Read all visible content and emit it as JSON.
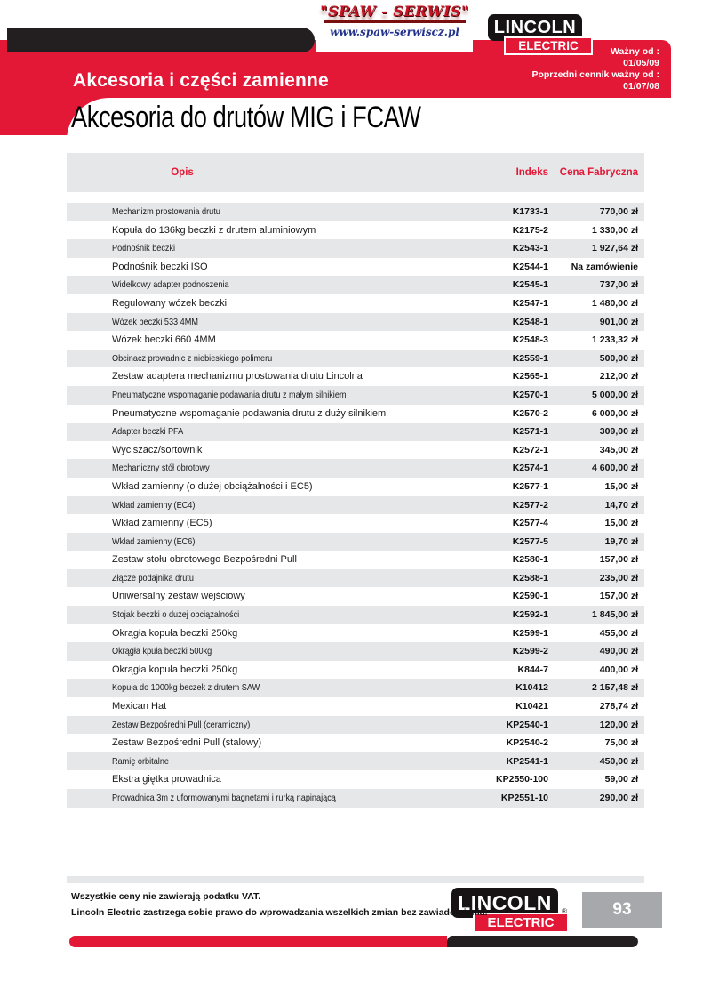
{
  "branding": {
    "dealer": {
      "name": "\"SPAW - SERWIS\"",
      "website": "www.spaw-serwiscz.pl"
    },
    "lincoln": {
      "line1": "LINCOLN",
      "line2": "ELECTRIC",
      "registered_mark": "®"
    }
  },
  "header": {
    "section_title": "Akcesoria i części zamienne",
    "valid_from_label": "Ważny od :",
    "valid_from_date": "01/05/09",
    "previous_price_list_label": "Poprzedni cennik ważny od :",
    "previous_price_list_date": "01/07/08"
  },
  "page_title": "Akcesoria do drutów MIG i FCAW",
  "table": {
    "columns": {
      "description": "Opis",
      "index": "Indeks",
      "price": "Cena Fabryczna"
    },
    "rows": [
      {
        "description": "Mechanizm prostowania drutu",
        "index": "K1733-1",
        "price": "770,00 zł"
      },
      {
        "description": "Kopuła do 136kg beczki z drutem aluminiowym",
        "index": "K2175-2",
        "price": "1 330,00 zł"
      },
      {
        "description": "Podnośnik beczki",
        "index": "K2543-1",
        "price": "1 927,64 zł"
      },
      {
        "description": "Podnośnik beczki ISO",
        "index": "K2544-1",
        "price": "Na zamówienie"
      },
      {
        "description": "Widełkowy adapter podnoszenia",
        "index": "K2545-1",
        "price": "737,00 zł"
      },
      {
        "description": "Regulowany wózek beczki",
        "index": "K2547-1",
        "price": "1 480,00 zł"
      },
      {
        "description": "Wózek beczki 533 4MM",
        "index": "K2548-1",
        "price": "901,00 zł"
      },
      {
        "description": "Wózek beczki 660 4MM",
        "index": "K2548-3",
        "price": "1 233,32 zł"
      },
      {
        "description": "Obcinacz prowadnic z niebieskiego polimeru",
        "index": "K2559-1",
        "price": "500,00 zł"
      },
      {
        "description": "Zestaw adaptera mechanizmu prostowania drutu Lincolna",
        "index": "K2565-1",
        "price": "212,00 zł"
      },
      {
        "description": "Pneumatyczne wspomaganie podawania drutu z małym silnikiem",
        "index": "K2570-1",
        "price": "5 000,00 zł"
      },
      {
        "description": "Pneumatyczne wspomaganie podawania drutu z duży silnikiem",
        "index": "K2570-2",
        "price": "6 000,00 zł"
      },
      {
        "description": "Adapter beczki PFA",
        "index": "K2571-1",
        "price": "309,00 zł"
      },
      {
        "description": "Wyciszacz/sortownik",
        "index": "K2572-1",
        "price": "345,00 zł"
      },
      {
        "description": "Mechaniczny stół obrotowy",
        "index": "K2574-1",
        "price": "4 600,00 zł"
      },
      {
        "description": "Wkład zamienny (o dużej obciążalności i EC5)",
        "index": "K2577-1",
        "price": "15,00 zł"
      },
      {
        "description": "Wkład zamienny (EC4)",
        "index": "K2577-2",
        "price": "14,70 zł"
      },
      {
        "description": "Wkład zamienny (EC5)",
        "index": "K2577-4",
        "price": "15,00 zł"
      },
      {
        "description": "Wkład zamienny (EC6)",
        "index": "K2577-5",
        "price": "19,70 zł"
      },
      {
        "description": "Zestaw stołu obrotowego Bezpośredni Pull",
        "index": "K2580-1",
        "price": "157,00 zł"
      },
      {
        "description": "Złącze podajnika drutu",
        "index": "K2588-1",
        "price": "235,00 zł"
      },
      {
        "description": "Uniwersalny zestaw wejściowy",
        "index": "K2590-1",
        "price": "157,00 zł"
      },
      {
        "description": "Stojak beczki o dużej obciążalności",
        "index": "K2592-1",
        "price": "1 845,00 zł"
      },
      {
        "description": "Okrągła kopuła beczki 250kg",
        "index": "K2599-1",
        "price": "455,00 zł"
      },
      {
        "description": "Okrągła kpuła beczki 500kg",
        "index": "K2599-2",
        "price": "490,00 zł"
      },
      {
        "description": "Okrągła kopuła beczki 250kg",
        "index": "K844-7",
        "price": "400,00 zł"
      },
      {
        "description": "Kopuła do 1000kg beczek z drutem SAW",
        "index": "K10412",
        "price": "2 157,48 zł"
      },
      {
        "description": "Mexican Hat",
        "index": "K10421",
        "price": "278,74 zł"
      },
      {
        "description": "Zestaw Bezpośredni Pull (ceramiczny)",
        "index": "KP2540-1",
        "price": "120,00 zł"
      },
      {
        "description": "Zestaw Bezpośredni Pull (stalowy)",
        "index": "KP2540-2",
        "price": "75,00 zł"
      },
      {
        "description": "Ramię orbitalne",
        "index": "KP2541-1",
        "price": "450,00 zł"
      },
      {
        "description": "Ekstra giętka prowadnica",
        "index": "KP2550-100",
        "price": "59,00 zł"
      },
      {
        "description": "Prowadnica 3m z uformowanymi bagnetami i rurką napinającą",
        "index": "KP2551-10",
        "price": "290,00 zł"
      }
    ]
  },
  "footer": {
    "note1": "Wszystkie ceny nie zawierają podatku VAT.",
    "note2": "Lincoln Electric zastrzega sobie prawo do wprowadzania wszelkich zmian bez zawiadomienia.",
    "page_number": "93"
  },
  "colors": {
    "brand_red": "#e31837",
    "bar_black": "#231f20",
    "row_gray": "#e6e7e8",
    "page_box_gray": "#a6a8ab",
    "dealer_url_blue": "#24338c"
  }
}
